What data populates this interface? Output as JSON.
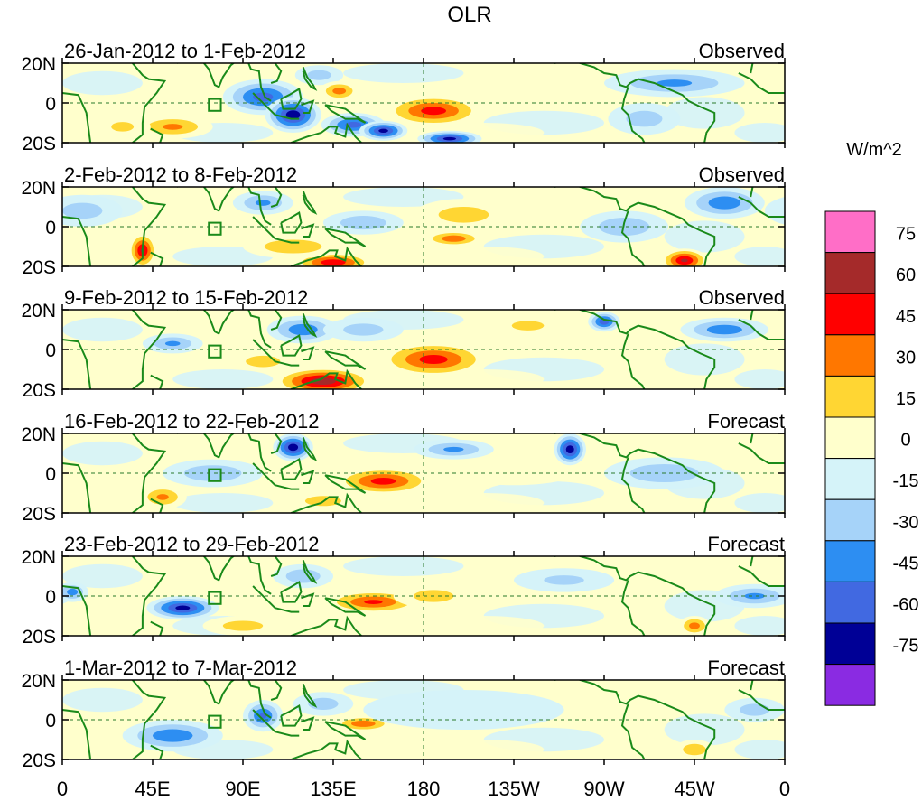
{
  "chart_data": {
    "type": "heatmap",
    "title": "OLR",
    "units_label": "W/m^2",
    "y_tick_labels": [
      "20N",
      "0",
      "20S"
    ],
    "x_tick_labels": [
      "0",
      "45E",
      "90E",
      "135E",
      "180",
      "135W",
      "90W",
      "45W",
      "0"
    ],
    "x_ticks_lon": [
      0,
      45,
      90,
      135,
      180,
      225,
      270,
      315,
      360
    ],
    "lon_range": [
      0,
      360
    ],
    "lat_range": [
      -20,
      20
    ],
    "colorbar": {
      "tick_labels": [
        "75",
        "60",
        "45",
        "30",
        "15",
        "0",
        "-15",
        "-30",
        "-45",
        "-60",
        "-75"
      ],
      "colors": [
        "#ff6ec7",
        "#a52a2a",
        "#ff0000",
        "#ff7700",
        "#ffd633",
        "#ffffcc",
        "#d5f3f9",
        "#a6d3f9",
        "#2d8ef2",
        "#4169e1",
        "#000096",
        "#8a2be2"
      ]
    },
    "panels": [
      {
        "date_range": "26-Jan-2012 to 1-Feb-2012",
        "kind": "Observed",
        "anomalies": [
          {
            "lon": 100,
            "lat": 3,
            "rx": 20,
            "ry": 9,
            "v": -50
          },
          {
            "lon": 115,
            "lat": -6,
            "rx": 14,
            "ry": 9,
            "v": -70
          },
          {
            "lon": 128,
            "lat": 14,
            "rx": 12,
            "ry": 5,
            "v": -20
          },
          {
            "lon": 145,
            "lat": -11,
            "rx": 16,
            "ry": 6,
            "v": -50
          },
          {
            "lon": 160,
            "lat": -14,
            "rx": 12,
            "ry": 5,
            "v": -65
          },
          {
            "lon": 193,
            "lat": -18,
            "rx": 16,
            "ry": 4,
            "v": -65
          },
          {
            "lon": 185,
            "lat": -4,
            "rx": 25,
            "ry": 8,
            "v": 50
          },
          {
            "lon": 138,
            "lat": 6,
            "rx": 10,
            "ry": 5,
            "v": 35
          },
          {
            "lon": 305,
            "lat": 10,
            "rx": 35,
            "ry": 7,
            "v": -30
          },
          {
            "lon": 290,
            "lat": -8,
            "rx": 18,
            "ry": 8,
            "v": -20
          },
          {
            "lon": 55,
            "lat": -12,
            "rx": 20,
            "ry": 6,
            "v": 30
          },
          {
            "lon": 30,
            "lat": -12,
            "rx": 14,
            "ry": 6,
            "v": 15
          }
        ]
      },
      {
        "date_range": "2-Feb-2012 to 8-Feb-2012",
        "kind": "Observed",
        "anomalies": [
          {
            "lon": 40,
            "lat": -12,
            "rx": 7,
            "ry": 9,
            "v": 60
          },
          {
            "lon": 135,
            "lat": -18,
            "rx": 20,
            "ry": 5,
            "v": 55
          },
          {
            "lon": 115,
            "lat": -10,
            "rx": 25,
            "ry": 6,
            "v": 25
          },
          {
            "lon": 195,
            "lat": -6,
            "rx": 15,
            "ry": 4,
            "v": 40
          },
          {
            "lon": 200,
            "lat": 6,
            "rx": 25,
            "ry": 8,
            "v": 20
          },
          {
            "lon": 310,
            "lat": -17,
            "rx": 12,
            "ry": 6,
            "v": 60
          },
          {
            "lon": 330,
            "lat": 12,
            "rx": 20,
            "ry": 8,
            "v": -40
          },
          {
            "lon": 100,
            "lat": 12,
            "rx": 15,
            "ry": 6,
            "v": -30
          },
          {
            "lon": 150,
            "lat": 2,
            "rx": 20,
            "ry": 6,
            "v": -25
          },
          {
            "lon": 10,
            "lat": 8,
            "rx": 20,
            "ry": 8,
            "v": -20
          },
          {
            "lon": 280,
            "lat": 0,
            "rx": 22,
            "ry": 8,
            "v": -25
          }
        ]
      },
      {
        "date_range": "9-Feb-2012 to 15-Feb-2012",
        "kind": "Observed",
        "anomalies": [
          {
            "lon": 130,
            "lat": -16,
            "rx": 25,
            "ry": 7,
            "v": 70
          },
          {
            "lon": 185,
            "lat": -5,
            "rx": 28,
            "ry": 9,
            "v": 50
          },
          {
            "lon": 100,
            "lat": -6,
            "rx": 15,
            "ry": 5,
            "v": 25
          },
          {
            "lon": 120,
            "lat": 10,
            "rx": 18,
            "ry": 7,
            "v": -40
          },
          {
            "lon": 270,
            "lat": 14,
            "rx": 8,
            "ry": 5,
            "v": -55
          },
          {
            "lon": 330,
            "lat": 10,
            "rx": 22,
            "ry": 6,
            "v": -40
          },
          {
            "lon": 55,
            "lat": 3,
            "rx": 15,
            "ry": 5,
            "v": -30
          },
          {
            "lon": 150,
            "lat": 10,
            "rx": 20,
            "ry": 6,
            "v": -20
          },
          {
            "lon": 232,
            "lat": 12,
            "rx": 20,
            "ry": 6,
            "v": 15
          }
        ]
      },
      {
        "date_range": "16-Feb-2012 to 22-Feb-2012",
        "kind": "Forecast",
        "anomalies": [
          {
            "lon": 115,
            "lat": 13,
            "rx": 10,
            "ry": 7,
            "v": -70
          },
          {
            "lon": 253,
            "lat": 12,
            "rx": 8,
            "ry": 8,
            "v": -70
          },
          {
            "lon": 160,
            "lat": -4,
            "rx": 25,
            "ry": 7,
            "v": 50
          },
          {
            "lon": 50,
            "lat": -12,
            "rx": 12,
            "ry": 6,
            "v": 30
          },
          {
            "lon": 195,
            "lat": 12,
            "rx": 20,
            "ry": 5,
            "v": -30
          },
          {
            "lon": 75,
            "lat": 0,
            "rx": 25,
            "ry": 7,
            "v": -25
          },
          {
            "lon": 300,
            "lat": 0,
            "rx": 30,
            "ry": 8,
            "v": -25
          },
          {
            "lon": 130,
            "lat": -14,
            "rx": 18,
            "ry": 5,
            "v": 20
          },
          {
            "lon": 225,
            "lat": 0,
            "rx": 30,
            "ry": 6,
            "v": 10
          }
        ]
      },
      {
        "date_range": "23-Feb-2012 to 29-Feb-2012",
        "kind": "Forecast",
        "anomalies": [
          {
            "lon": 60,
            "lat": -6,
            "rx": 18,
            "ry": 6,
            "v": -65
          },
          {
            "lon": 155,
            "lat": -3,
            "rx": 25,
            "ry": 6,
            "v": 45
          },
          {
            "lon": 185,
            "lat": 0,
            "rx": 20,
            "ry": 6,
            "v": 20
          },
          {
            "lon": 345,
            "lat": 0,
            "rx": 20,
            "ry": 6,
            "v": -30
          },
          {
            "lon": 5,
            "lat": 2,
            "rx": 8,
            "ry": 5,
            "v": -35
          },
          {
            "lon": 120,
            "lat": 10,
            "rx": 15,
            "ry": 6,
            "v": -25
          },
          {
            "lon": 315,
            "lat": -15,
            "rx": 8,
            "ry": 5,
            "v": 35
          },
          {
            "lon": 250,
            "lat": 8,
            "rx": 25,
            "ry": 6,
            "v": -15
          },
          {
            "lon": 90,
            "lat": -15,
            "rx": 20,
            "ry": 5,
            "v": 20
          }
        ]
      },
      {
        "date_range": "1-Mar-2012 to 7-Mar-2012",
        "kind": "Forecast",
        "anomalies": [
          {
            "lon": 55,
            "lat": -8,
            "rx": 25,
            "ry": 8,
            "v": -40
          },
          {
            "lon": 100,
            "lat": 2,
            "rx": 10,
            "ry": 8,
            "v": -45
          },
          {
            "lon": 150,
            "lat": -2,
            "rx": 15,
            "ry": 4,
            "v": 40
          },
          {
            "lon": 315,
            "lat": -15,
            "rx": 10,
            "ry": 5,
            "v": 25
          },
          {
            "lon": 200,
            "lat": 5,
            "rx": 50,
            "ry": 10,
            "v": -10
          },
          {
            "lon": 130,
            "lat": 8,
            "rx": 15,
            "ry": 6,
            "v": -20
          },
          {
            "lon": 345,
            "lat": 5,
            "rx": 15,
            "ry": 6,
            "v": -20
          }
        ]
      }
    ]
  }
}
